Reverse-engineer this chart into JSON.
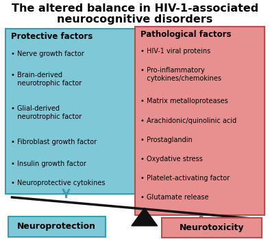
{
  "title_line1": "The altered balance in HIV-1-associated",
  "title_line2": "neurocognitive disorders",
  "title_fontsize": 11.5,
  "left_box_color": "#7EC8D8",
  "right_box_color": "#E89090",
  "left_box_edge": "#3A9AB0",
  "right_box_edge": "#B05050",
  "left_header": "Protective factors",
  "right_header": "Pathological factors",
  "left_items": [
    "Nerve growth factor",
    "Brain-derived\n   neurotrophic factor",
    "Glial-derived\n   neurotrophic factor",
    "Fibroblast growth factor",
    "Insulin growth factor",
    "Neuroprotective cytokines"
  ],
  "right_items": [
    "HIV-1 viral proteins",
    "Pro-inflammatory\n   cytokines/chemokines",
    "Matrix metalloproteases",
    "Arachidonic/quinolinic acid",
    "Prostaglandin",
    "Oxydative stress",
    "Platelet-activating factor",
    "Glutamate release"
  ],
  "left_label": "Neuroprotection",
  "right_label": "Neurotoxicity",
  "left_label_color": "#7EC8D8",
  "right_label_color": "#E89090",
  "left_label_edge": "#3A9AB0",
  "right_label_edge": "#B05050",
  "arrow_left_color": "#3A9AB0",
  "arrow_right_color": "#B05050",
  "bg_color": "#FFFFFF",
  "text_color": "#000000",
  "item_fontsize": 7.0,
  "header_fontsize": 8.5,
  "label_fontsize": 9.0,
  "beam_color": "#111111",
  "triangle_color": "#111111"
}
